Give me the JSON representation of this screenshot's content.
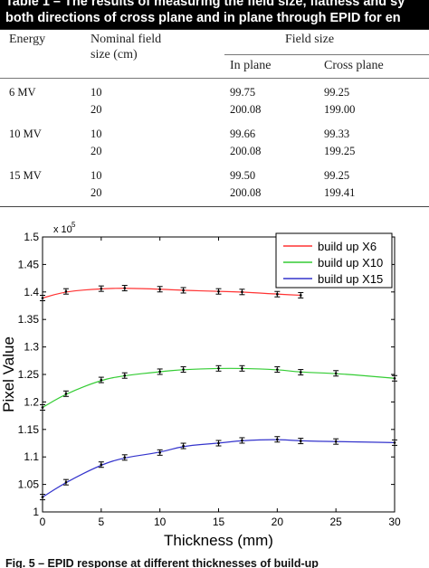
{
  "table": {
    "caption_line1": "Table 1 – The results of measuring the field size, flatness and sy",
    "caption_line2": "both directions of cross plane and in plane through EPID for en",
    "headers": {
      "energy": "Energy",
      "nominal_field_size_line1": "Nominal field",
      "nominal_field_size_line2": "size (cm)",
      "field_size": "Field size",
      "in_plane": "In plane",
      "cross_plane": "Cross plane"
    },
    "groups": [
      {
        "energy": "6 MV",
        "rows": [
          {
            "nominal": "10",
            "in_plane": "99.75",
            "cross_plane": "99.25"
          },
          {
            "nominal": "20",
            "in_plane": "200.08",
            "cross_plane": "199.00"
          }
        ]
      },
      {
        "energy": "10 MV",
        "rows": [
          {
            "nominal": "10",
            "in_plane": "99.66",
            "cross_plane": "99.33"
          },
          {
            "nominal": "20",
            "in_plane": "200.08",
            "cross_plane": "199.25"
          }
        ]
      },
      {
        "energy": "15 MV",
        "rows": [
          {
            "nominal": "10",
            "in_plane": "99.50",
            "cross_plane": "99.25"
          },
          {
            "nominal": "20",
            "in_plane": "200.08",
            "cross_plane": "199.41"
          }
        ]
      }
    ]
  },
  "chart_data": {
    "type": "line",
    "title": "",
    "xlabel": "Thickness (mm)",
    "ylabel": "Pixel Value",
    "y_multiplier_base": "x 10",
    "y_multiplier_exponent": "5",
    "xlim": [
      0,
      30
    ],
    "ylim": [
      1.0,
      1.5
    ],
    "xticks": [
      0,
      5,
      10,
      15,
      20,
      25,
      30
    ],
    "yticks": [
      1.0,
      1.05,
      1.1,
      1.15,
      1.2,
      1.25,
      1.3,
      1.35,
      1.4,
      1.45,
      1.5
    ],
    "grid": false,
    "legend_position": "top-right",
    "series": [
      {
        "name": "build up X6",
        "color": "#ff3333",
        "x": [
          0,
          2,
          5,
          7,
          10,
          12,
          15,
          17,
          20,
          22
        ],
        "y": [
          1.389,
          1.401,
          1.406,
          1.407,
          1.405,
          1.403,
          1.401,
          1.4,
          1.396,
          1.394
        ]
      },
      {
        "name": "build up X10",
        "color": "#33cc33",
        "x": [
          0,
          2,
          5,
          7,
          10,
          12,
          15,
          17,
          20,
          22,
          25,
          30
        ],
        "y": [
          1.19,
          1.215,
          1.24,
          1.248,
          1.255,
          1.259,
          1.261,
          1.261,
          1.259,
          1.254,
          1.252,
          1.243
        ]
      },
      {
        "name": "build up X15",
        "color": "#3333cc",
        "x": [
          0,
          2,
          5,
          7,
          10,
          12,
          15,
          17,
          20,
          22,
          25,
          30
        ],
        "y": [
          1.027,
          1.054,
          1.086,
          1.099,
          1.108,
          1.12,
          1.125,
          1.13,
          1.132,
          1.129,
          1.128,
          1.126
        ]
      }
    ]
  },
  "figure_caption": "Fig. 5 – EPID response at different thicknesses of build-up"
}
